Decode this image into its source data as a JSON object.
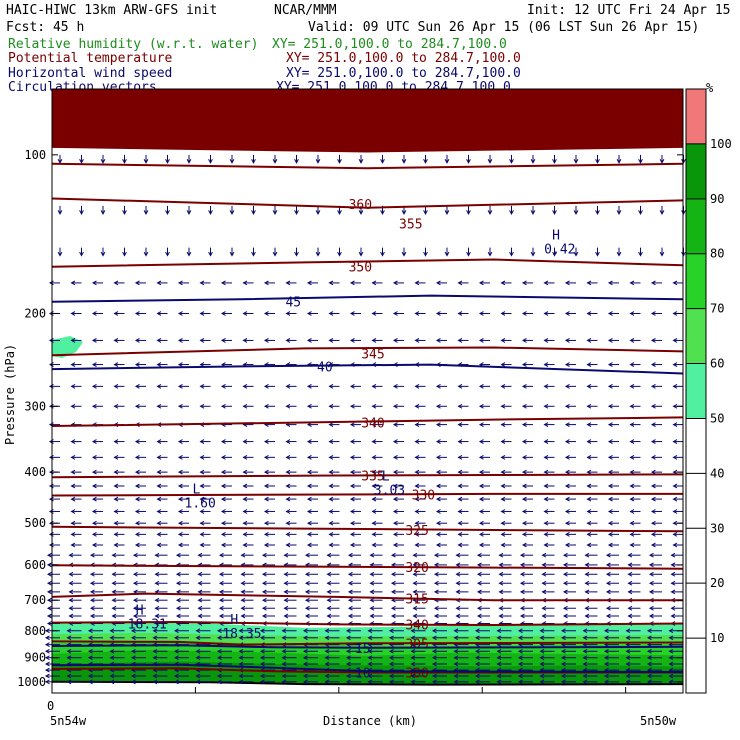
{
  "header": {
    "title_left": "HAIC-HIWC 13km ARW-GFS init",
    "org": "NCAR/MMM",
    "init": "Init: 12 UTC Fri 24 Apr 15",
    "fcst": "Fcst:   45 h",
    "valid": "Valid: 09 UTC Sun 26 Apr 15 (06 LST Sun 26 Apr 15)",
    "fields": [
      {
        "name": "Relative humidity (w.r.t. water)",
        "xy": "XY= 251.0,100.0 to 284.7,100.0",
        "color": "#1e8c1e"
      },
      {
        "name": "Potential temperature",
        "xy": "XY= 251.0,100.0 to 284.7,100.0",
        "color": "#7a0000"
      },
      {
        "name": "Horizontal wind speed",
        "xy": "XY= 251.0,100.0 to 284.7,100.0",
        "color": "#0a0a6e"
      },
      {
        "name": "Circulation vectors",
        "xy": "XY= 251.0,100.0 to 284.7,100.0",
        "color": "#0a0a6e"
      }
    ]
  },
  "chart_data": {
    "type": "heatmap",
    "xlabel": "Distance (km)",
    "ylabel": "Pressure (hPa)",
    "x_ticks": [
      "0"
    ],
    "x_end_labels": [
      "5n54w",
      "5n50w"
    ],
    "y_ticks": [
      100,
      200,
      300,
      400,
      500,
      600,
      700,
      800,
      900,
      1000
    ],
    "ylim": [
      1050,
      75
    ],
    "y_scale": "log",
    "colorbar": {
      "unit": "%",
      "levels": [
        10,
        20,
        30,
        40,
        50,
        60,
        70,
        80,
        90,
        100
      ],
      "colors": {
        "50-60": "#50f0a0",
        "60-70": "#50e050",
        "70-80": "#28d228",
        "80-90": "#14b414",
        "90-100": "#0a960a",
        "100+": "#f07878"
      }
    },
    "theta_contour_labels": [
      "360",
      "355",
      "350",
      "345",
      "340",
      "335",
      "330",
      "325",
      "320",
      "315",
      "310",
      "305",
      "300"
    ],
    "wind_contour_labels": [
      "45",
      "40",
      "15",
      "10",
      "10"
    ],
    "centers": [
      {
        "type": "L",
        "value": "1.60"
      },
      {
        "type": "L",
        "value": "3.03"
      },
      {
        "type": "H",
        "value": "18.31"
      },
      {
        "type": "H",
        "value": "18.35"
      },
      {
        "type": "H",
        "value": "0.42"
      }
    ]
  }
}
